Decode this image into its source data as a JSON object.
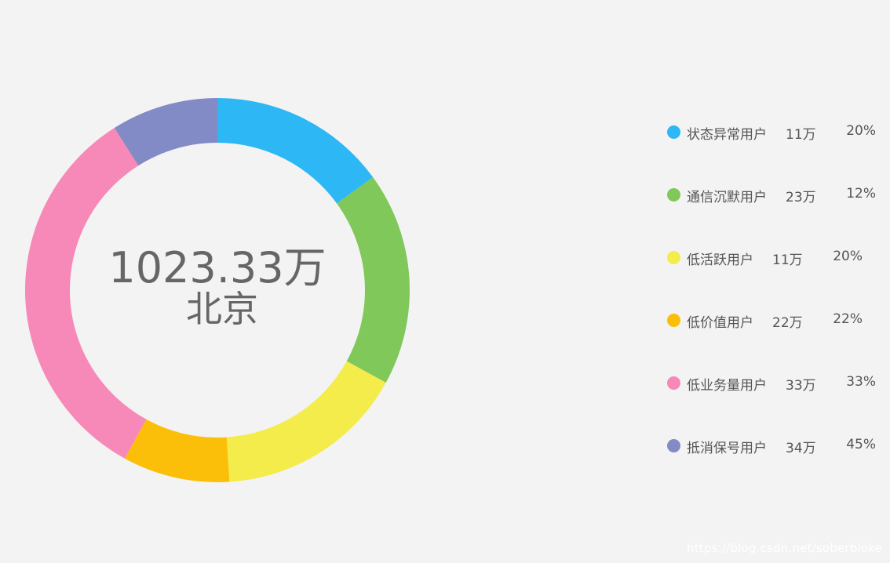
{
  "chart_data": {
    "type": "pie",
    "center": {
      "value": "1023.33万",
      "label": "北京"
    },
    "series": [
      {
        "name": "状态异常用户",
        "count": "11万",
        "percent": "20%",
        "value": 15,
        "color": "#2db7f5"
      },
      {
        "name": "通信沉默用户",
        "count": "23万",
        "percent": "12%",
        "value": 18,
        "color": "#80c85a"
      },
      {
        "name": "低活跃用户",
        "count": "11万",
        "percent": "20%",
        "value": 16,
        "color": "#f3ec4a"
      },
      {
        "name": "低价值用户",
        "count": "22万",
        "percent": "22%",
        "value": 9,
        "color": "#fbbf0a"
      },
      {
        "name": "低业务量用户",
        "count": "33万",
        "percent": "33%",
        "value": 33,
        "color": "#f689b7"
      },
      {
        "name": "抵消保号用户",
        "count": "34万",
        "percent": "45%",
        "value": 9,
        "color": "#828bc6"
      }
    ],
    "legend_position": "right"
  },
  "watermark": "https://blog.csdn.net/soberbloke"
}
